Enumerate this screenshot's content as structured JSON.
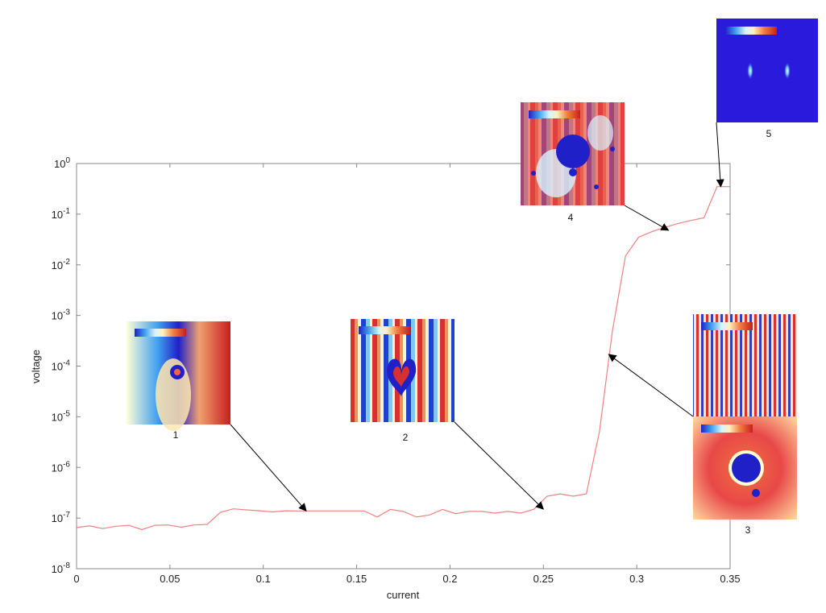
{
  "chart_data": {
    "type": "line",
    "xlabel": "current",
    "ylabel": "voltage",
    "xlim": [
      0,
      0.35
    ],
    "ylim_exponent": [
      -8,
      0
    ],
    "yscale": "log",
    "x_ticks": [
      "0",
      "0.05",
      "0.1",
      "0.15",
      "0.2",
      "0.25",
      "0.3",
      "0.35"
    ],
    "y_ticks": [
      {
        "base": "10",
        "exp": "0"
      },
      {
        "base": "10",
        "exp": "-1"
      },
      {
        "base": "10",
        "exp": "-2"
      },
      {
        "base": "10",
        "exp": "-3"
      },
      {
        "base": "10",
        "exp": "-4"
      },
      {
        "base": "10",
        "exp": "-5"
      },
      {
        "base": "10",
        "exp": "-6"
      },
      {
        "base": "10",
        "exp": "-7"
      },
      {
        "base": "10",
        "exp": "-8"
      }
    ],
    "series": [
      {
        "color": "#f08080",
        "x": [
          0,
          0.007,
          0.014,
          0.021,
          0.028,
          0.035,
          0.042,
          0.049,
          0.056,
          0.063,
          0.07,
          0.077,
          0.084,
          0.091,
          0.098,
          0.105,
          0.112,
          0.119,
          0.126,
          0.133,
          0.14,
          0.147,
          0.154,
          0.161,
          0.168,
          0.175,
          0.182,
          0.189,
          0.196,
          0.203,
          0.21,
          0.217,
          0.224,
          0.231,
          0.238,
          0.245,
          0.252,
          0.259,
          0.266,
          0.273,
          0.28,
          0.287,
          0.294,
          0.301,
          0.308,
          0.315,
          0.322,
          0.329,
          0.336,
          0.343,
          0.35
        ],
        "y": [
          6.5e-08,
          7e-08,
          6.2e-08,
          6.9e-08,
          7.2e-08,
          5.9e-08,
          7.2e-08,
          7.3e-08,
          6.6e-08,
          7.3e-08,
          7.5e-08,
          1.3e-07,
          1.52e-07,
          1.45e-07,
          1.39e-07,
          1.32e-07,
          1.39e-07,
          1.38e-07,
          1.38e-07,
          1.38e-07,
          1.38e-07,
          1.38e-07,
          1.38e-07,
          1.05e-07,
          1.48e-07,
          1.35e-07,
          1.05e-07,
          1.15e-07,
          1.48e-07,
          1.22e-07,
          1.35e-07,
          1.35e-07,
          1.25e-07,
          1.35e-07,
          1.25e-07,
          1.5e-07,
          2.7e-07,
          3e-07,
          2.7e-07,
          3e-07,
          5e-06,
          0.0005,
          0.015,
          0.035,
          0.045,
          0.055,
          0.065,
          0.075,
          0.085,
          0.35,
          0.35
        ]
      }
    ],
    "annotations": [
      {
        "label": "1",
        "target": [
          0.123,
          1.38e-07
        ]
      },
      {
        "label": "2",
        "target": [
          0.25,
          1.5e-07
        ]
      },
      {
        "label": "3",
        "target": [
          0.285,
          0.00017
        ]
      },
      {
        "label": "4",
        "target": [
          0.317,
          0.048
        ]
      },
      {
        "label": "5",
        "target": [
          0.345,
          0.35
        ]
      }
    ]
  }
}
